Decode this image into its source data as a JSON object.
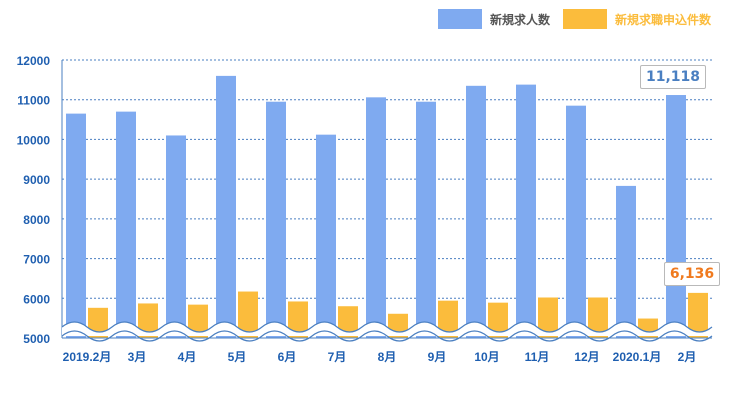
{
  "chart_data": {
    "type": "bar",
    "categories": [
      "2019.2月",
      "3月",
      "4月",
      "5月",
      "6月",
      "7月",
      "8月",
      "9月",
      "10月",
      "11月",
      "12月",
      "2020.1月",
      "2月"
    ],
    "series": [
      {
        "name": "新規求人数",
        "color": "#7faaf0",
        "values": [
          10650,
          10700,
          10100,
          11600,
          10950,
          10120,
          11060,
          10950,
          11350,
          11380,
          10850,
          8830,
          11118
        ]
      },
      {
        "name": "新規求職申込件数",
        "color": "#fbbc3c",
        "values": [
          5760,
          5870,
          5840,
          6170,
          5920,
          5800,
          5610,
          5940,
          5890,
          6020,
          6020,
          5490,
          6136
        ]
      }
    ],
    "ylim": [
      5000,
      12000
    ],
    "yticks": [
      5000,
      6000,
      7000,
      8000,
      9000,
      10000,
      11000,
      12000
    ],
    "grid": true,
    "axis_break": true,
    "legend_position": "top-right",
    "annotations": [
      {
        "text": "11,118",
        "series": 0,
        "category": "2月",
        "color": "#4a7fc1"
      },
      {
        "text": "6,136",
        "series": 1,
        "category": "2月",
        "color": "#f07a1e"
      }
    ],
    "tick_color": "#1f5fb0"
  }
}
